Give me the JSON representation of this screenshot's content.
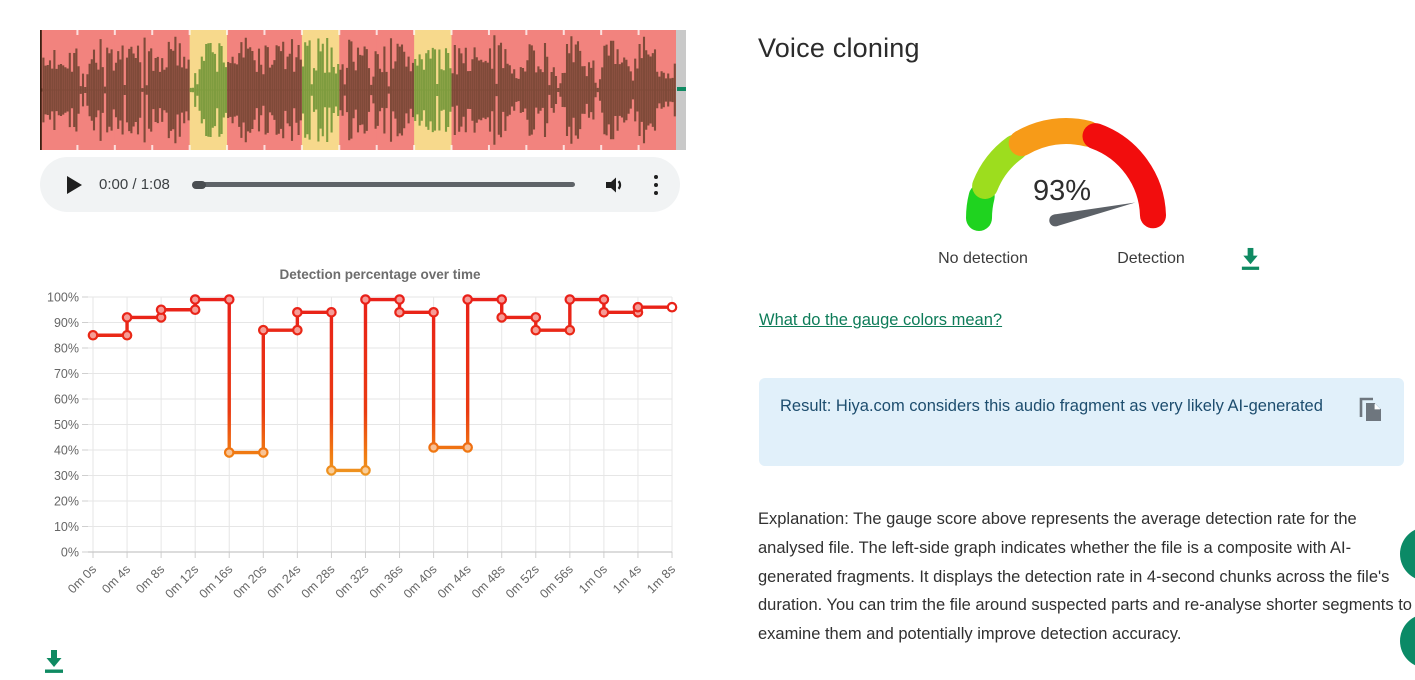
{
  "page": {
    "title": "Voice cloning"
  },
  "waveform": {
    "chunk_count": 17,
    "ai_chunks": [
      4,
      7,
      10
    ],
    "colors": {
      "human_bg": "#f2837e",
      "human_wave": "#7f4a39",
      "ai_bg": "#f7d98c",
      "ai_wave": "#7e9c3f",
      "cursor": "#3d2012",
      "end_bar": "#c9c9c9",
      "end_tick": "#0f8a62"
    }
  },
  "audio_player": {
    "time_display": "0:00 / 1:08",
    "icons": [
      "play-icon",
      "volume-icon",
      "more-vert-icon"
    ]
  },
  "chart_data": [
    {
      "type": "line",
      "subtype": "step",
      "title": "Detection percentage over time",
      "categories": [
        "0m 0s",
        "0m 4s",
        "0m 8s",
        "0m 12s",
        "0m 16s",
        "0m 20s",
        "0m 24s",
        "0m 28s",
        "0m 32s",
        "0m 36s",
        "0m 40s",
        "0m 44s",
        "0m 48s",
        "0m 52s",
        "0m 56s",
        "1m 0s",
        "1m 4s",
        "1m 8s"
      ],
      "values": [
        85,
        92,
        95,
        99,
        39,
        87,
        94,
        32,
        99,
        94,
        41,
        99,
        92,
        87,
        99,
        94,
        96
      ],
      "ylim": [
        0,
        100
      ],
      "ytick_labels": [
        "0%",
        "10%",
        "20%",
        "30%",
        "40%",
        "50%",
        "60%",
        "70%",
        "80%",
        "90%",
        "100%"
      ],
      "grid": true,
      "legend": "none",
      "line_gradient": {
        "top": "#e92019",
        "upper_mid": "#ea3b12",
        "mid": "#f07d12",
        "lower_mid": "#eda62c",
        "bottom": "#e7c83f"
      }
    },
    {
      "type": "gauge",
      "value": 93,
      "value_label": "93%",
      "min_label": "No detection",
      "max_label": "Detection",
      "segments": [
        {
          "color": "#1fd31f",
          "from": 0.0,
          "to": 0.08
        },
        {
          "color": "#9ddd1e",
          "from": 0.12,
          "to": 0.3
        },
        {
          "color": "#f79b18",
          "from": 0.33,
          "to": 0.58
        },
        {
          "color": "#f20d0d",
          "from": 0.61,
          "to": 0.99
        }
      ],
      "needle_color": "#5c6167",
      "value_text_color": "#2e2e2e"
    }
  ],
  "gauge_link": {
    "label": "What do the gauge colors mean?"
  },
  "result_box": {
    "text": "Result: Hiya.com considers this audio fragment as very likely AI-generated",
    "copy_icon": "copy-icon",
    "bg": "#e1f0fa",
    "text_color": "#1d4d6e"
  },
  "explanation": {
    "text": "Explanation: The gauge score above represents the average detection rate for the analysed file. The left-side graph indicates whether the file is a composite with AI-generated fragments. It displays the detection rate in 4-second chunks across the file's duration. You can trim the file around suspected parts and re-analyse shorter segments to examine them and potentially improve detection accuracy."
  },
  "misc": {
    "download_icon_color": "#0f8a62",
    "fab_color": "#0b8a66"
  }
}
